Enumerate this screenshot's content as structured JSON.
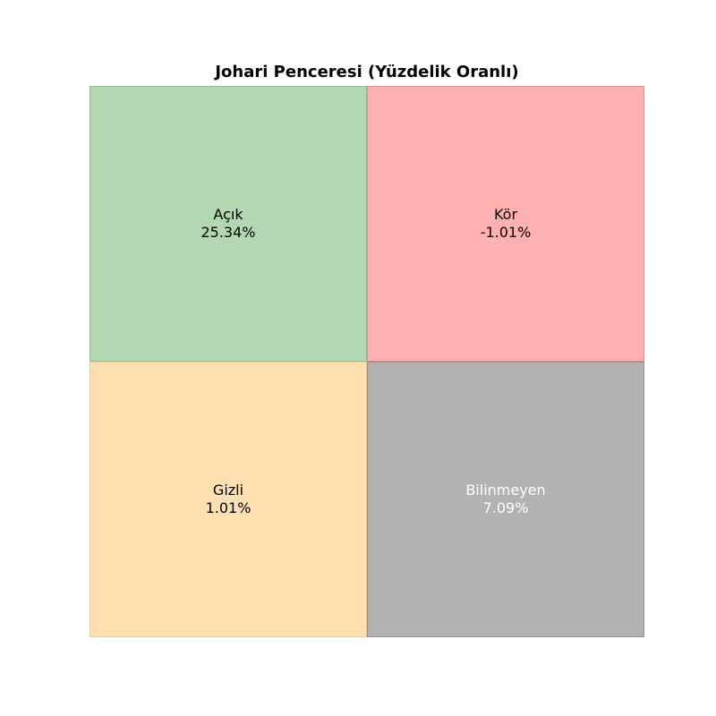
{
  "chart_data": {
    "type": "table",
    "title": "Johari Penceresi (Yüzdelik Oranlı)",
    "quadrants": [
      {
        "name": "Açık",
        "value": 25.34,
        "value_label": "25.34%",
        "color": "#b3d7b0",
        "border": "#8fbf8a",
        "text_color": "#000000"
      },
      {
        "name": "Kör",
        "value": -1.01,
        "value_label": "-1.01%",
        "color": "#ffb0b0",
        "border": "#d89090",
        "text_color": "#000000"
      },
      {
        "name": "Gizli",
        "value": 1.01,
        "value_label": "1.01%",
        "color": "#fee0b0",
        "border": "#f0cc90",
        "text_color": "#000000"
      },
      {
        "name": "Bilinmeyen",
        "value": 7.09,
        "value_label": "7.09%",
        "color": "#b2b2b2",
        "border": "#8f8f8f",
        "text_color": "#ffffff"
      }
    ],
    "grid": "2x2",
    "legend": "none"
  }
}
